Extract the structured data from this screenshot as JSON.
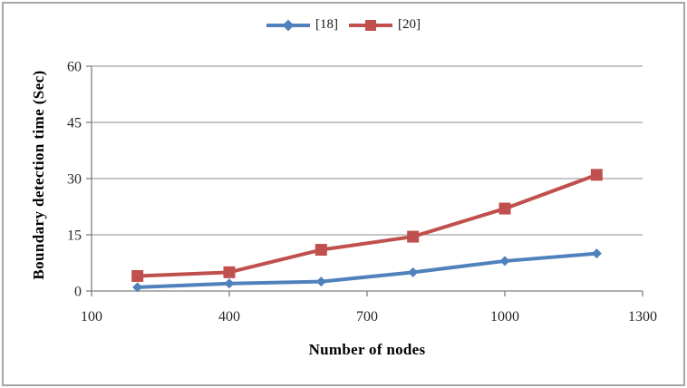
{
  "chart_data": {
    "type": "line",
    "title": "",
    "xlabel": "Number of nodes",
    "ylabel": "Boundary detection time (Sec)",
    "x": [
      200,
      400,
      600,
      800,
      1000,
      1200
    ],
    "series": [
      {
        "name": "[18]",
        "color": "#4F81BD",
        "marker": "diamond",
        "values": [
          1,
          2,
          2.5,
          5,
          8,
          10
        ]
      },
      {
        "name": "[20]",
        "color": "#C0504D",
        "marker": "square",
        "values": [
          4,
          5,
          11,
          14.5,
          22,
          31
        ]
      }
    ],
    "xticks": [
      100,
      400,
      700,
      1000,
      1300
    ],
    "yticks": [
      0,
      15,
      30,
      45,
      60
    ],
    "xlim": [
      100,
      1300
    ],
    "ylim": [
      0,
      60
    ],
    "grid": "horizontal",
    "legend_position": "top-center",
    "axis_color": "#808080",
    "gridline_color": "#8c8c8c",
    "tick_label_color": "#262626",
    "frame_border_color": "#a6a6a6"
  }
}
